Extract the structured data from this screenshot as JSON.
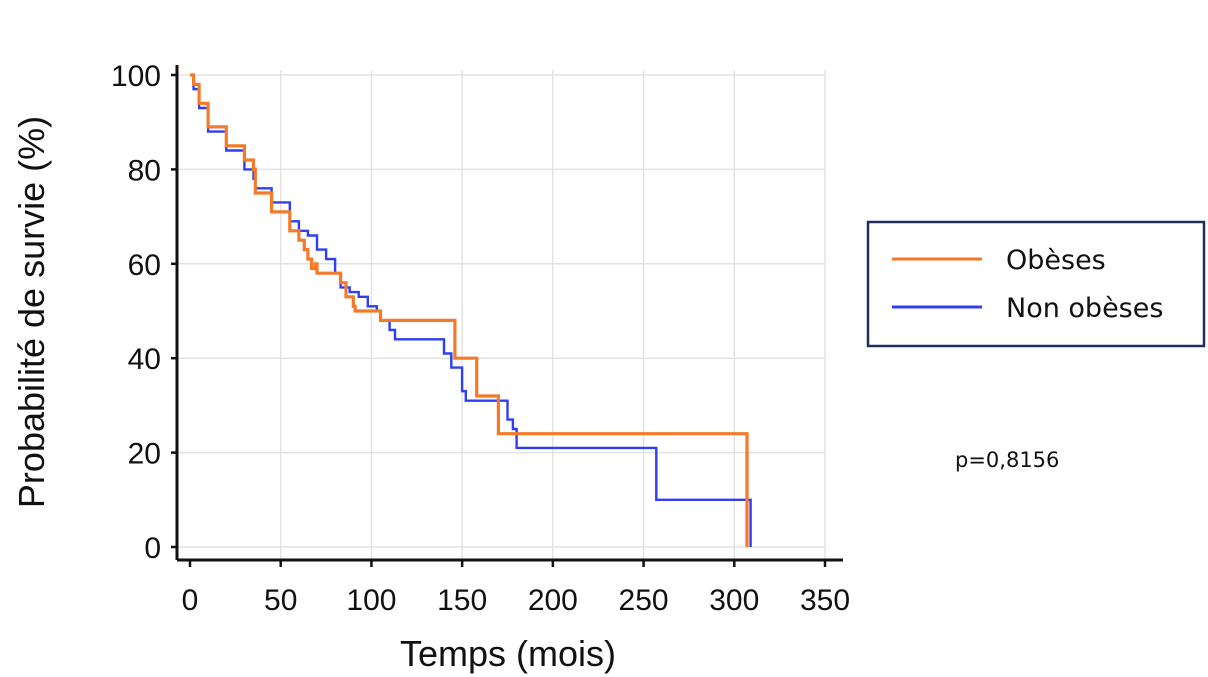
{
  "chart_data": {
    "type": "line",
    "xlabel": "Temps (mois)",
    "ylabel": "Probabilité de survie (%)",
    "xlim": [
      0,
      350
    ],
    "ylim": [
      0,
      100
    ],
    "x_ticks": [
      0,
      50,
      100,
      150,
      200,
      250,
      300,
      350
    ],
    "y_ticks": [
      0,
      20,
      40,
      60,
      80,
      100
    ],
    "grid": true,
    "legend_position": "right",
    "annotation": "p=0,8156",
    "series": [
      {
        "name": "Obèses",
        "color": "#f47a2a",
        "step": true,
        "points": [
          [
            0,
            100
          ],
          [
            2,
            98
          ],
          [
            5,
            94
          ],
          [
            10,
            89
          ],
          [
            20,
            85
          ],
          [
            30,
            82
          ],
          [
            35,
            80
          ],
          [
            36,
            75
          ],
          [
            45,
            71
          ],
          [
            55,
            67
          ],
          [
            60,
            65
          ],
          [
            63,
            63
          ],
          [
            65,
            61
          ],
          [
            67,
            59
          ],
          [
            69,
            60
          ],
          [
            70,
            58
          ],
          [
            80,
            58
          ],
          [
            83,
            56
          ],
          [
            86,
            53
          ],
          [
            90,
            51
          ],
          [
            91,
            50
          ],
          [
            103,
            50
          ],
          [
            105,
            48
          ],
          [
            145,
            48
          ],
          [
            146,
            40
          ],
          [
            157,
            40
          ],
          [
            158,
            32
          ],
          [
            169,
            32
          ],
          [
            170,
            24
          ],
          [
            180,
            24
          ],
          [
            307,
            24
          ],
          [
            307,
            0
          ]
        ]
      },
      {
        "name": "Non obèses",
        "color": "#2f3ff0",
        "step": true,
        "points": [
          [
            0,
            100
          ],
          [
            2,
            97
          ],
          [
            5,
            93
          ],
          [
            10,
            88
          ],
          [
            20,
            84
          ],
          [
            30,
            80
          ],
          [
            35,
            78
          ],
          [
            36,
            76
          ],
          [
            45,
            73
          ],
          [
            55,
            69
          ],
          [
            60,
            67
          ],
          [
            65,
            66
          ],
          [
            70,
            63
          ],
          [
            75,
            61
          ],
          [
            80,
            58
          ],
          [
            83,
            55
          ],
          [
            88,
            54
          ],
          [
            93,
            53
          ],
          [
            98,
            51
          ],
          [
            103,
            50
          ],
          [
            105,
            48
          ],
          [
            110,
            46
          ],
          [
            113,
            44
          ],
          [
            137,
            44
          ],
          [
            140,
            41
          ],
          [
            144,
            38
          ],
          [
            150,
            33
          ],
          [
            152,
            31
          ],
          [
            172,
            31
          ],
          [
            175,
            27
          ],
          [
            178,
            25
          ],
          [
            180,
            21
          ],
          [
            256,
            21
          ],
          [
            257,
            10
          ],
          [
            309,
            10
          ],
          [
            309,
            0
          ]
        ]
      }
    ]
  }
}
